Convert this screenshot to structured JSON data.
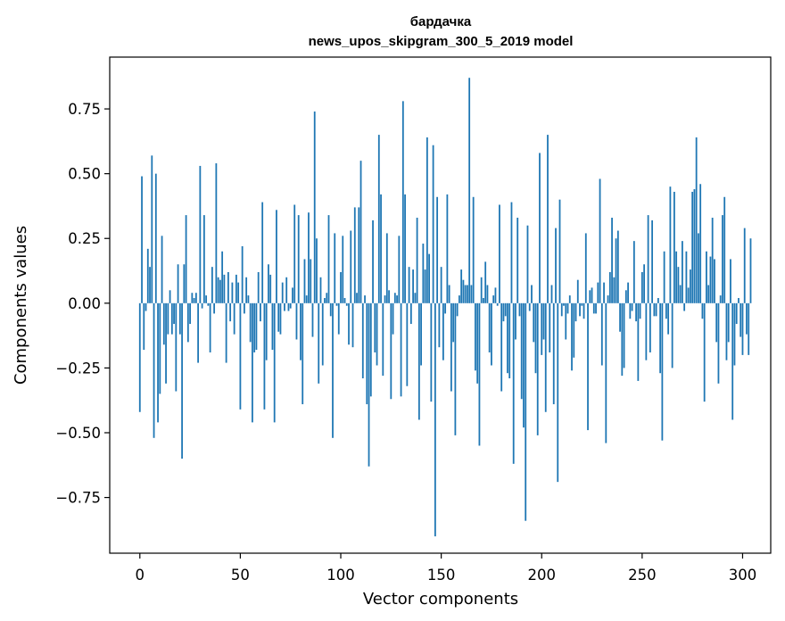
{
  "chart_data": {
    "type": "bar",
    "title": "бардачка",
    "subtitle": "news_upos_skipgram_300_5_2019 model",
    "xlabel": "Vector components",
    "ylabel": "Components values",
    "xlim": [
      -15.0,
      314.0
    ],
    "ylim": [
      -0.965,
      0.95
    ],
    "xticks": [
      0,
      50,
      100,
      150,
      200,
      250,
      300
    ],
    "yticks": [
      -0.75,
      -0.5,
      -0.25,
      0.0,
      0.25,
      0.5,
      0.75
    ],
    "ytick_labels": [
      "−0.75",
      "−0.50",
      "−0.25",
      "0.00",
      "0.25",
      "0.50",
      "0.75"
    ],
    "bar_color": "#1f77b4",
    "grid": false,
    "values": [
      -0.42,
      0.49,
      -0.18,
      -0.03,
      0.21,
      0.14,
      0.57,
      -0.52,
      0.5,
      -0.46,
      -0.35,
      0.26,
      -0.16,
      -0.31,
      -0.12,
      0.05,
      -0.12,
      -0.08,
      -0.34,
      0.15,
      -0.12,
      -0.6,
      0.15,
      0.34,
      -0.15,
      -0.08,
      0.04,
      0.02,
      0.04,
      -0.23,
      0.53,
      -0.02,
      0.34,
      0.03,
      -0.01,
      -0.19,
      0.14,
      -0.04,
      0.54,
      0.1,
      0.09,
      0.2,
      0.11,
      -0.23,
      0.12,
      -0.07,
      0.08,
      -0.12,
      0.11,
      0.08,
      -0.41,
      0.22,
      -0.04,
      0.1,
      0.03,
      -0.15,
      -0.46,
      -0.19,
      -0.18,
      0.12,
      -0.07,
      0.39,
      -0.41,
      -0.22,
      0.15,
      0.11,
      -0.18,
      -0.46,
      0.36,
      -0.11,
      -0.12,
      0.08,
      -0.03,
      0.1,
      -0.03,
      -0.02,
      0.06,
      0.38,
      -0.14,
      0.34,
      -0.22,
      -0.39,
      0.17,
      0.03,
      0.35,
      0.17,
      -0.13,
      0.74,
      0.25,
      -0.31,
      0.1,
      -0.24,
      0.02,
      0.04,
      0.34,
      -0.05,
      -0.52,
      0.27,
      -0.01,
      -0.12,
      0.12,
      0.26,
      0.02,
      -0.01,
      -0.16,
      0.28,
      -0.17,
      0.37,
      0.04,
      0.37,
      0.55,
      -0.29,
      0.03,
      -0.39,
      -0.63,
      -0.36,
      0.32,
      -0.19,
      -0.24,
      0.65,
      0.42,
      -0.28,
      0.03,
      0.27,
      0.05,
      -0.37,
      -0.12,
      0.04,
      0.03,
      0.26,
      -0.36,
      0.78,
      0.42,
      -0.32,
      0.14,
      -0.08,
      0.13,
      0.04,
      0.33,
      -0.45,
      -0.24,
      0.23,
      0.13,
      0.64,
      0.19,
      -0.38,
      0.61,
      -0.9,
      0.41,
      -0.17,
      0.14,
      -0.22,
      -0.04,
      0.42,
      0.07,
      -0.34,
      -0.15,
      -0.51,
      -0.05,
      0.03,
      0.13,
      0.09,
      0.07,
      0.07,
      0.87,
      0.07,
      0.41,
      -0.26,
      -0.31,
      -0.55,
      0.1,
      0.02,
      0.16,
      0.07,
      -0.19,
      -0.24,
      0.03,
      0.06,
      -0.01,
      0.38,
      -0.34,
      -0.07,
      -0.05,
      -0.27,
      -0.29,
      0.39,
      -0.62,
      -0.14,
      0.33,
      -0.05,
      -0.37,
      -0.48,
      -0.84,
      0.3,
      -0.03,
      0.07,
      -0.15,
      -0.27,
      -0.51,
      0.58,
      -0.2,
      -0.14,
      -0.42,
      0.65,
      -0.19,
      0.07,
      -0.39,
      0.29,
      -0.69,
      0.4,
      -0.05,
      -0.01,
      -0.14,
      -0.04,
      0.03,
      -0.26,
      -0.21,
      -0.07,
      0.09,
      -0.05,
      -0.01,
      -0.06,
      0.27,
      -0.49,
      0.05,
      0.06,
      -0.04,
      -0.04,
      0.08,
      0.48,
      -0.24,
      0.08,
      -0.54,
      0.03,
      0.12,
      0.33,
      0.1,
      0.25,
      0.28,
      -0.11,
      -0.28,
      -0.25,
      0.05,
      0.08,
      -0.06,
      -0.03,
      0.24,
      -0.07,
      -0.3,
      -0.06,
      0.12,
      0.15,
      -0.22,
      0.34,
      -0.19,
      0.32,
      -0.05,
      -0.05,
      0.02,
      -0.27,
      -0.53,
      0.2,
      -0.06,
      -0.12,
      0.45,
      -0.25,
      0.43,
      0.2,
      0.14,
      0.07,
      0.24,
      -0.03,
      0.2,
      0.06,
      0.13,
      0.43,
      0.44,
      0.64,
      0.27,
      0.46,
      -0.06,
      -0.38,
      0.2,
      0.07,
      0.18,
      0.33,
      0.17,
      -0.15,
      -0.31,
      0.03,
      0.34,
      0.41,
      -0.22,
      -0.15,
      0.17,
      -0.45,
      -0.24,
      -0.08,
      0.02,
      -0.13,
      -0.2,
      0.29,
      -0.12,
      -0.2,
      0.25
    ]
  }
}
